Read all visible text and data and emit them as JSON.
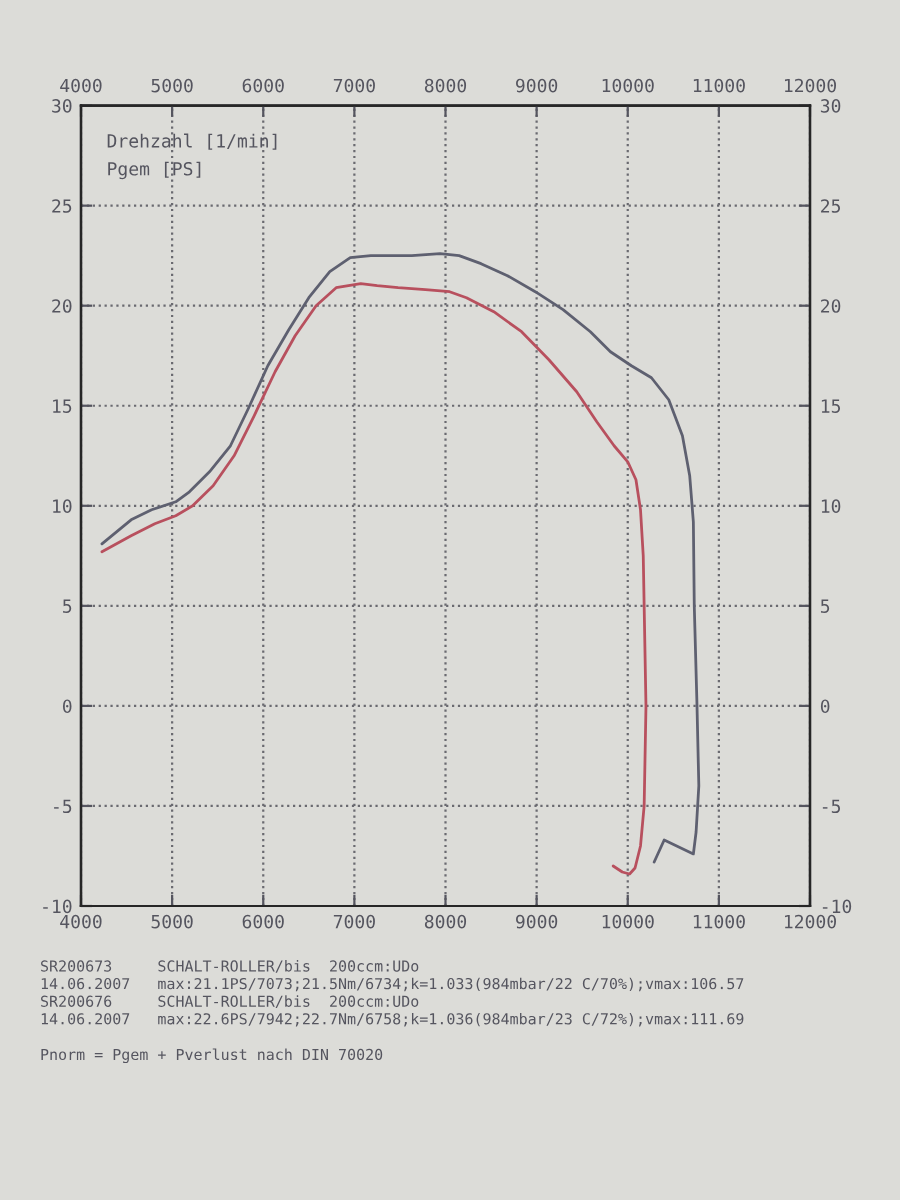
{
  "chart_data": {
    "type": "line",
    "xlabel": "Drehzahl [1/min]",
    "ylabel": "Pgem [PS]",
    "series": [
      {
        "color": "#b8505e",
        "x": [
          4230,
          4550,
          4810,
          5040,
          5225,
          5450,
          5680,
          5900,
          6130,
          6350,
          6580,
          6800,
          7070,
          7250,
          7480,
          7780,
          8045,
          8230,
          8530,
          8835,
          9135,
          9440,
          9660,
          9850,
          10000,
          10090,
          10140,
          10170,
          10180,
          10200,
          10180,
          10140,
          10080,
          10020,
          9940,
          9840
        ],
        "values": [
          7.7,
          8.5,
          9.1,
          9.5,
          10.0,
          11.0,
          12.5,
          14.5,
          16.7,
          18.5,
          20.0,
          20.9,
          21.1,
          21.0,
          20.9,
          20.8,
          20.7,
          20.4,
          19.7,
          18.7,
          17.3,
          15.7,
          14.2,
          13.0,
          12.2,
          11.3,
          9.8,
          7.5,
          5,
          0,
          -5,
          -7,
          -8.1,
          -8.4,
          -8.3,
          -8.0
        ]
      },
      {
        "color": "#5e6070",
        "x": [
          4230,
          4550,
          4775,
          5040,
          5190,
          5410,
          5640,
          5830,
          6050,
          6280,
          6500,
          6730,
          6955,
          7180,
          7630,
          7940,
          8150,
          8390,
          8680,
          8985,
          9290,
          9590,
          9810,
          10040,
          10260,
          10450,
          10600,
          10680,
          10720,
          10730,
          10760,
          10780,
          10750,
          10720,
          10400,
          10290
        ],
        "values": [
          8.1,
          9.3,
          9.8,
          10.2,
          10.7,
          11.7,
          13.0,
          14.8,
          17.0,
          18.8,
          20.4,
          21.7,
          22.4,
          22.5,
          22.5,
          22.6,
          22.5,
          22.1,
          21.5,
          20.7,
          19.8,
          18.7,
          17.7,
          17.0,
          16.4,
          15.3,
          13.5,
          11.5,
          9.2,
          5,
          0,
          -4,
          -6.3,
          -7.4,
          -6.7,
          -7.8
        ]
      }
    ],
    "xlim": [
      4000,
      12000
    ],
    "xticks": [
      4000,
      5000,
      6000,
      7000,
      8000,
      9000,
      10000,
      11000,
      12000
    ],
    "x2lim": [
      4000,
      12000
    ],
    "x2ticks": [
      4000,
      5000,
      6000,
      7000,
      8000,
      9000,
      10000,
      11000,
      12000
    ],
    "ylim": [
      -10,
      30
    ],
    "yticks": [
      -10,
      -5,
      0,
      5,
      10,
      15,
      20,
      25,
      30
    ],
    "y2lim": [
      -10,
      30
    ],
    "y2ticks": [
      -10,
      -5,
      0,
      5,
      10,
      15,
      20,
      25,
      30
    ],
    "grid": true,
    "line_style": "solid",
    "annotations": [
      "SR200673     SCHALT-ROLLER/bis  200ccm:UDo",
      "14.06.2007   max:21.1PS/7073;21.5Nm/6734;k=1.033(984mbar/22 C/70%);vmax:106.57",
      "SR200676     SCHALT-ROLLER/bis  200ccm:UDo",
      "14.06.2007   max:22.6PS/7942;22.7Nm/6758;k=1.036(984mbar/23 C/72%);vmax:111.69",
      "Pnorm = Pgem + Pverlust nach DIN 70020"
    ]
  }
}
